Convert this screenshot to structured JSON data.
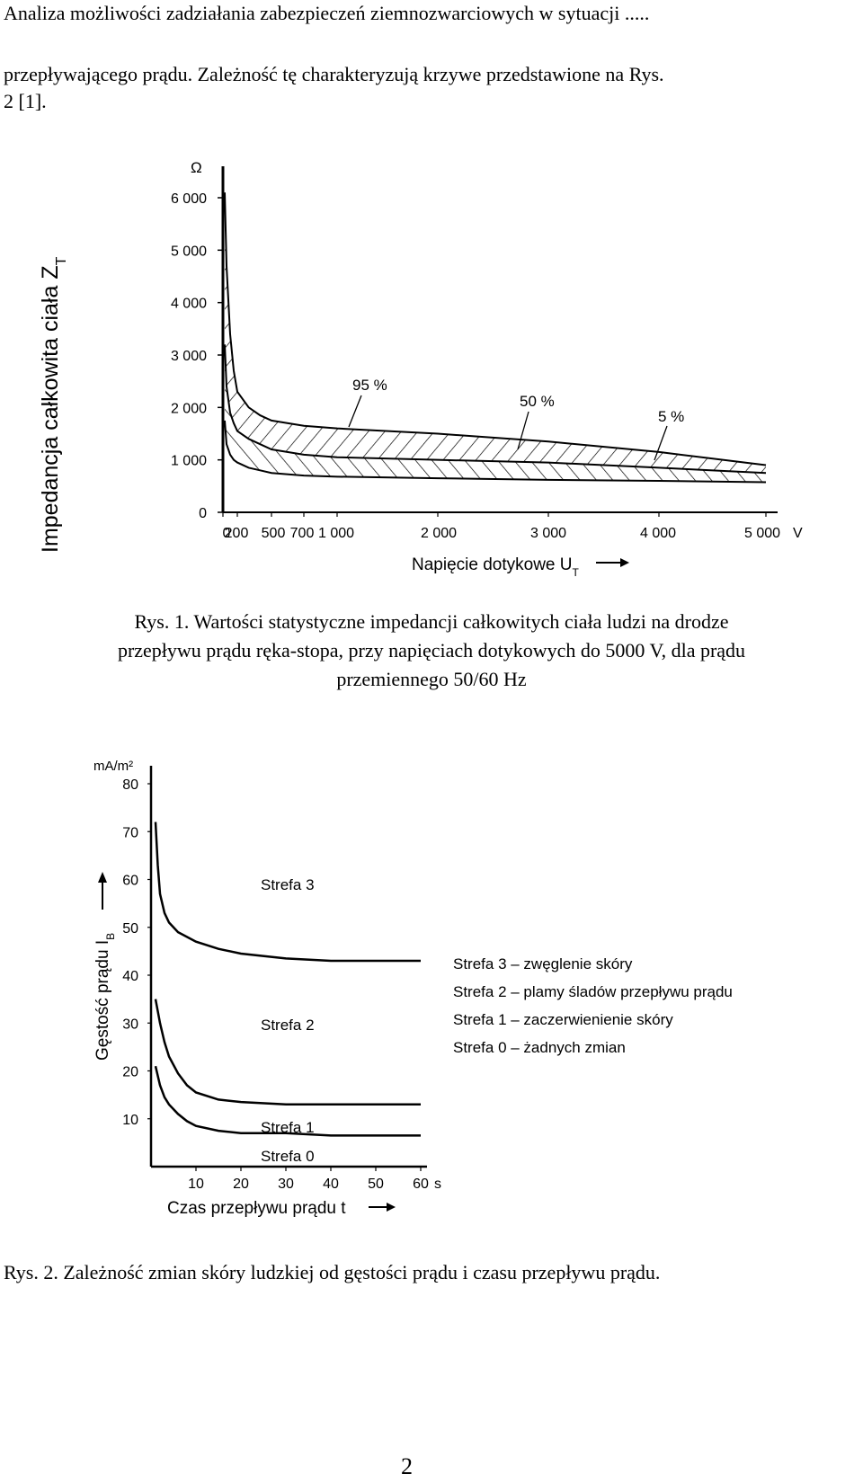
{
  "header": "Analiza możliwości zadziałania zabezpieczeń ziemnozwarciowych w sytuacji .....",
  "intro": {
    "line1": "przepływającego prądu. Zależność tę charakteryzują krzywe przedstawione na Rys.",
    "line2": "2 [1]."
  },
  "figure1": {
    "chart_data": {
      "type": "area",
      "unit_y": "Ω",
      "ylabel": "Impedancja całkowita ciała Z",
      "ylabel_sub": "T",
      "xlabel": "Napięcie dotykowe U",
      "xlabel_sub": "T",
      "x_ticks": [
        "0",
        "200",
        "500",
        "700",
        "1 000",
        "2 000",
        "3 000",
        "4 000",
        "5 000"
      ],
      "x_tick_values": [
        0,
        200,
        500,
        700,
        1000,
        2000,
        3000,
        4000,
        5000
      ],
      "x_unit": "V",
      "y_ticks": [
        "0",
        "1 000",
        "2 000",
        "3 000",
        "4 000",
        "5 000",
        "6 000"
      ],
      "y_tick_values": [
        0,
        1000,
        2000,
        3000,
        4000,
        5000,
        6000
      ],
      "xlim": [
        0,
        5200
      ],
      "ylim": [
        0,
        6500
      ],
      "series": [
        {
          "name": "95 %",
          "x": [
            25,
            50,
            100,
            150,
            200,
            300,
            400,
            500,
            700,
            1000,
            2000,
            3000,
            4000,
            5000
          ],
          "y": [
            6100,
            4700,
            3400,
            2700,
            2300,
            2000,
            1850,
            1750,
            1650,
            1600,
            1500,
            1350,
            1150,
            900
          ]
        },
        {
          "name": "50 %",
          "x": [
            25,
            50,
            100,
            150,
            200,
            300,
            400,
            500,
            700,
            1000,
            2000,
            3000,
            4000,
            5000
          ],
          "y": [
            3200,
            2400,
            1900,
            1700,
            1550,
            1400,
            1300,
            1200,
            1100,
            1050,
            1000,
            950,
            850,
            750
          ]
        },
        {
          "name": "5 %",
          "x": [
            25,
            50,
            100,
            150,
            200,
            300,
            400,
            500,
            700,
            1000,
            2000,
            3000,
            4000,
            5000
          ],
          "y": [
            1750,
            1300,
            1100,
            1000,
            950,
            850,
            800,
            750,
            700,
            680,
            650,
            620,
            600,
            575
          ]
        }
      ]
    },
    "caption": [
      "Rys. 1. Wartości statystyczne impedancji całkowitych ciała ludzi na drodze",
      "przepływu prądu ręka-stopa, przy napięciach dotykowych do 5000 V, dla prądu",
      "przemiennego 50/60 Hz"
    ]
  },
  "figure2": {
    "chart_data": {
      "type": "line",
      "unit_y": "mA/m²",
      "ylabel": "Gęstość prądu I",
      "ylabel_sub": "B",
      "xlabel": "Czas przepływu prądu t",
      "x_ticks": [
        "10",
        "20",
        "30",
        "40",
        "50",
        "60"
      ],
      "x_tick_values": [
        10,
        20,
        30,
        40,
        50,
        60
      ],
      "x_unit": "s",
      "y_ticks": [
        "10",
        "20",
        "30",
        "40",
        "50",
        "60",
        "70",
        "80"
      ],
      "y_tick_values": [
        10,
        20,
        30,
        40,
        50,
        60,
        70,
        80
      ],
      "xlim": [
        0,
        65
      ],
      "ylim": [
        0,
        82
      ],
      "series": [
        {
          "x": [
            1,
            1.5,
            2,
            3,
            4,
            6,
            10,
            15,
            20,
            30,
            40,
            50,
            60
          ],
          "y": [
            72,
            63,
            57,
            53,
            51,
            49,
            47,
            45.5,
            44.5,
            43.5,
            43,
            43,
            43
          ]
        },
        {
          "x": [
            1,
            2,
            3,
            4,
            6,
            8,
            10,
            15,
            20,
            30,
            40,
            50,
            60
          ],
          "y": [
            35,
            30,
            26,
            23,
            19.5,
            17,
            15.5,
            14,
            13.5,
            13,
            13,
            13,
            13
          ]
        },
        {
          "x": [
            1,
            2,
            3,
            4,
            6,
            8,
            10,
            15,
            20,
            30,
            40,
            50,
            60
          ],
          "y": [
            21,
            17,
            14.5,
            13,
            11,
            9.5,
            8.5,
            7.5,
            7,
            7,
            6.5,
            6.5,
            6.5
          ]
        }
      ],
      "zone_labels": [
        "Strefa 3",
        "Strefa 2",
        "Strefa 1",
        "Strefa 0"
      ],
      "legend": [
        "Strefa 3 – zwęglenie skóry",
        "Strefa 2 – plamy śladów przepływu prądu",
        "Strefa 1 – zaczerwienienie skóry",
        "Strefa 0 – żadnych zmian"
      ]
    },
    "caption": "Rys. 2. Zależność zmian skóry ludzkiej od gęstości prądu i czasu przepływu prądu."
  },
  "page_number": "2"
}
